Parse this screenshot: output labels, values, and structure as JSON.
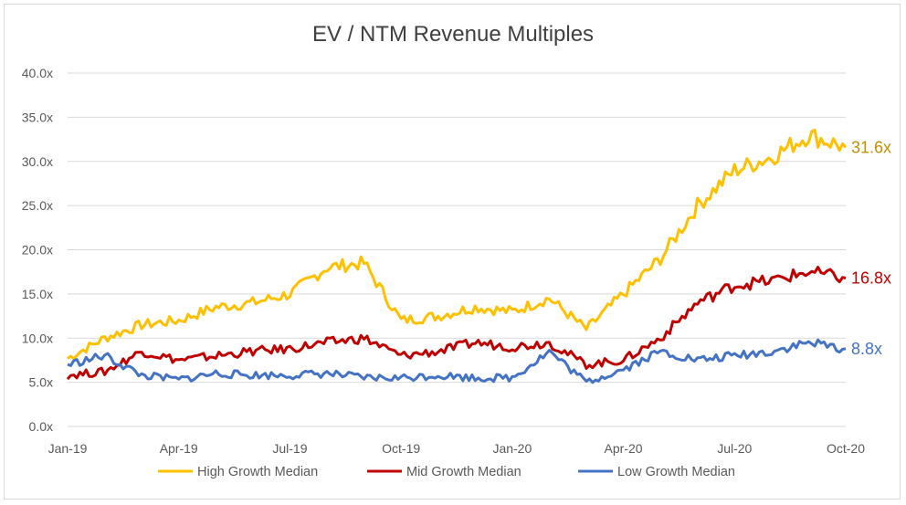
{
  "chart_data": {
    "type": "line",
    "title": "EV / NTM Revenue Multiples",
    "xlabel": "",
    "ylabel": "",
    "ylim": [
      0,
      40
    ],
    "yticks": [
      "0.0x",
      "5.0x",
      "10.0x",
      "15.0x",
      "20.0x",
      "25.0x",
      "30.0x",
      "35.0x",
      "40.0x"
    ],
    "xticks": [
      "Jan-19",
      "Apr-19",
      "Jul-19",
      "Oct-19",
      "Jan-20",
      "Apr-20",
      "Jul-20",
      "Oct-20"
    ],
    "grid": "horizontal",
    "legend_position": "bottom",
    "x": [
      "2019-01",
      "2019-02",
      "2019-03",
      "2019-04",
      "2019-05",
      "2019-06",
      "2019-07",
      "2019-08",
      "2019-09",
      "2019-10",
      "2019-11",
      "2019-12",
      "2020-01",
      "2020-02",
      "2020-03",
      "2020-04",
      "2020-05",
      "2020-06",
      "2020-07",
      "2020-08",
      "2020-09",
      "2020-10"
    ],
    "series": [
      {
        "name": "High Growth Median",
        "color": "#FFC000",
        "end_label": "31.6x",
        "values": [
          7.7,
          10.0,
          11.5,
          12.0,
          13.5,
          14.0,
          15.0,
          18.0,
          18.5,
          12.0,
          12.5,
          13.5,
          13.0,
          14.5,
          11.0,
          15.0,
          19.0,
          25.0,
          29.0,
          30.5,
          33.0,
          31.6
        ]
      },
      {
        "name": "Mid Growth Median",
        "color": "#C00000",
        "end_label": "16.8x",
        "values": [
          5.8,
          6.2,
          8.5,
          7.5,
          8.0,
          8.5,
          8.8,
          9.5,
          10.0,
          8.0,
          8.5,
          9.5,
          9.0,
          9.5,
          7.0,
          7.5,
          10.0,
          14.0,
          16.0,
          16.5,
          17.5,
          16.8
        ]
      },
      {
        "name": "Low Growth Median",
        "color": "#4472C4",
        "end_label": "8.8x",
        "values": [
          7.0,
          8.0,
          5.8,
          5.3,
          6.0,
          5.8,
          5.8,
          6.0,
          5.5,
          5.5,
          5.8,
          5.5,
          5.5,
          8.5,
          5.0,
          6.5,
          8.5,
          7.5,
          8.0,
          8.5,
          9.5,
          8.8
        ]
      }
    ]
  }
}
